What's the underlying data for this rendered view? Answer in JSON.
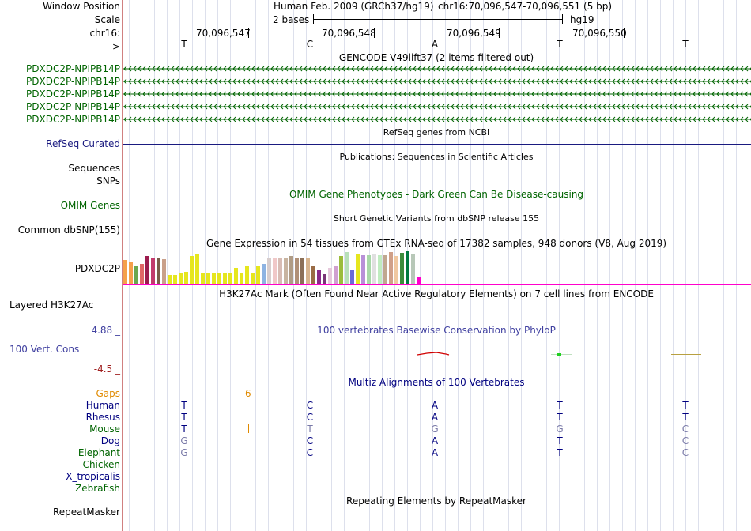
{
  "left_labels": {
    "window_position": "Window Position",
    "scale": "Scale",
    "chr": "chr16:",
    "arrow": "--->",
    "gene_label": "PDXDC2P-NPIPB14P",
    "refseq": "RefSeq Curated",
    "sequences": "Sequences",
    "snps": "SNPs",
    "omim": "OMIM Genes",
    "dbsnp": "Common dbSNP(155)",
    "pdxdc2p": "PDXDC2P",
    "h3k27ac": "Layered H3K27Ac",
    "cons_max": "4.88 _",
    "cons_label": "100 Vert. Cons",
    "cons_min": "-4.5 _",
    "gaps": "Gaps",
    "repeatmasker": "RepeatMasker"
  },
  "header": {
    "assembly": "Human Feb. 2009 (GRCh37/hg19)",
    "position": "chr16:70,096,547-70,096,551 (5 bp)",
    "scale_text": "2 bases",
    "scale_db": "hg19",
    "coords": [
      "70,096,547",
      "70,096,548",
      "70,096,549",
      "70,096,550"
    ]
  },
  "sequence_bases": [
    "T",
    "C",
    "A",
    "T",
    "T"
  ],
  "track_titles": {
    "gencode": "GENCODE V49lift37 (2 items filtered out)",
    "refseq": "RefSeq genes from NCBI",
    "publications": "Publications: Sequences in Scientific Articles",
    "omim": "OMIM Gene Phenotypes - Dark Green Can Be Disease-causing",
    "dbsnp": "Short Genetic Variants from dbSNP release 155",
    "gtex": "Gene Expression in 54 tissues from GTEx RNA-seq of 17382 samples, 948 donors (V8, Aug 2019)",
    "h3k27ac": "H3K27Ac Mark (Often Found Near Active Regulatory Elements) on 7 cell lines from ENCODE",
    "phylop": "100 vertebrates Basewise Conservation by PhyloP",
    "multiz": "Multiz Alignments of 100 Vertebrates",
    "repeatmasker": "Repeating Elements by RepeatMasker"
  },
  "gaps_value": "6",
  "species": [
    {
      "name": "Human",
      "color": "#000080",
      "bases": [
        "T",
        "C",
        "A",
        "T",
        "T"
      ],
      "match": [
        true,
        true,
        true,
        true,
        true
      ]
    },
    {
      "name": "Rhesus",
      "color": "#000080",
      "bases": [
        "T",
        "C",
        "A",
        "T",
        "T"
      ],
      "match": [
        true,
        true,
        true,
        true,
        true
      ]
    },
    {
      "name": "Mouse",
      "color": "#006400",
      "bases": [
        "T",
        "T",
        "G",
        "G",
        "C"
      ],
      "match": [
        true,
        false,
        false,
        false,
        false
      ]
    },
    {
      "name": "Dog",
      "color": "#000080",
      "bases": [
        "G",
        "C",
        "A",
        "T",
        "C"
      ],
      "match": [
        false,
        true,
        true,
        true,
        false
      ]
    },
    {
      "name": "Elephant",
      "color": "#006400",
      "bases": [
        "G",
        "C",
        "A",
        "T",
        "C"
      ],
      "match": [
        false,
        true,
        true,
        true,
        false
      ]
    },
    {
      "name": "Chicken",
      "color": "#006400",
      "bases": [
        "",
        "",
        "",
        "",
        ""
      ],
      "match": [
        true,
        true,
        true,
        true,
        true
      ]
    },
    {
      "name": "X_tropicalis",
      "color": "#000080",
      "bases": [
        "",
        "",
        "",
        "",
        ""
      ],
      "match": [
        true,
        true,
        true,
        true,
        true
      ]
    },
    {
      "name": "Zebrafish",
      "color": "#006400",
      "bases": [
        "",
        "",
        "",
        "",
        ""
      ],
      "match": [
        true,
        true,
        true,
        true,
        true
      ]
    }
  ],
  "gtex_bars": [
    {
      "h": 30,
      "c": "#f5a04a"
    },
    {
      "h": 27,
      "c": "#f5a04a"
    },
    {
      "h": 22,
      "c": "#6aa84f"
    },
    {
      "h": 25,
      "c": "#e06666"
    },
    {
      "h": 35,
      "c": "#9c1c4e"
    },
    {
      "h": 33,
      "c": "#c23b6d"
    },
    {
      "h": 33,
      "c": "#7a5c4a"
    },
    {
      "h": 31,
      "c": "#c9a08a"
    },
    {
      "h": 11,
      "c": "#e6e61e"
    },
    {
      "h": 11,
      "c": "#e6e61e"
    },
    {
      "h": 13,
      "c": "#e6e61e"
    },
    {
      "h": 15,
      "c": "#e6e61e"
    },
    {
      "h": 35,
      "c": "#e6e61e"
    },
    {
      "h": 38,
      "c": "#e6e61e"
    },
    {
      "h": 14,
      "c": "#e6e61e"
    },
    {
      "h": 13,
      "c": "#e6e61e"
    },
    {
      "h": 13,
      "c": "#e6e61e"
    },
    {
      "h": 14,
      "c": "#e6e61e"
    },
    {
      "h": 14,
      "c": "#e6e61e"
    },
    {
      "h": 14,
      "c": "#e6e61e"
    },
    {
      "h": 20,
      "c": "#e6e61e"
    },
    {
      "h": 14,
      "c": "#e6e61e"
    },
    {
      "h": 22,
      "c": "#e6e61e"
    },
    {
      "h": 14,
      "c": "#e6e61e"
    },
    {
      "h": 22,
      "c": "#e6e61e"
    },
    {
      "h": 25,
      "c": "#8db3e2"
    },
    {
      "h": 33,
      "c": "#d7cdcd"
    },
    {
      "h": 32,
      "c": "#f0c8c8"
    },
    {
      "h": 33,
      "c": "#d8bcb4"
    },
    {
      "h": 32,
      "c": "#c8b4a0"
    },
    {
      "h": 35,
      "c": "#b09c86"
    },
    {
      "h": 32,
      "c": "#b09078"
    },
    {
      "h": 32,
      "c": "#8c7058"
    },
    {
      "h": 32,
      "c": "#d7b48e"
    },
    {
      "h": 22,
      "c": "#9a6c46"
    },
    {
      "h": 17,
      "c": "#8a2a8a"
    },
    {
      "h": 12,
      "c": "#7a3478"
    },
    {
      "h": 20,
      "c": "#e6c8dc"
    },
    {
      "h": 22,
      "c": "#d0a0d0"
    },
    {
      "h": 35,
      "c": "#9cbc3c"
    },
    {
      "h": 40,
      "c": "#b8e0b8"
    },
    {
      "h": 17,
      "c": "#6b6bd8"
    },
    {
      "h": 37,
      "c": "#e6e61e"
    },
    {
      "h": 36,
      "c": "#b890d8"
    },
    {
      "h": 36,
      "c": "#a8d8a8"
    },
    {
      "h": 38,
      "c": "#e0e0e0"
    },
    {
      "h": 36,
      "c": "#c0ecc0"
    },
    {
      "h": 36,
      "c": "#c0a890"
    },
    {
      "h": 40,
      "c": "#d0a088"
    },
    {
      "h": 35,
      "c": "#f0c8a0"
    },
    {
      "h": 39,
      "c": "#3c8c3c"
    },
    {
      "h": 41,
      "c": "#007a40"
    },
    {
      "h": 38,
      "c": "#b8c8b8"
    },
    {
      "h": 8,
      "c": "#ff00cc"
    }
  ]
}
